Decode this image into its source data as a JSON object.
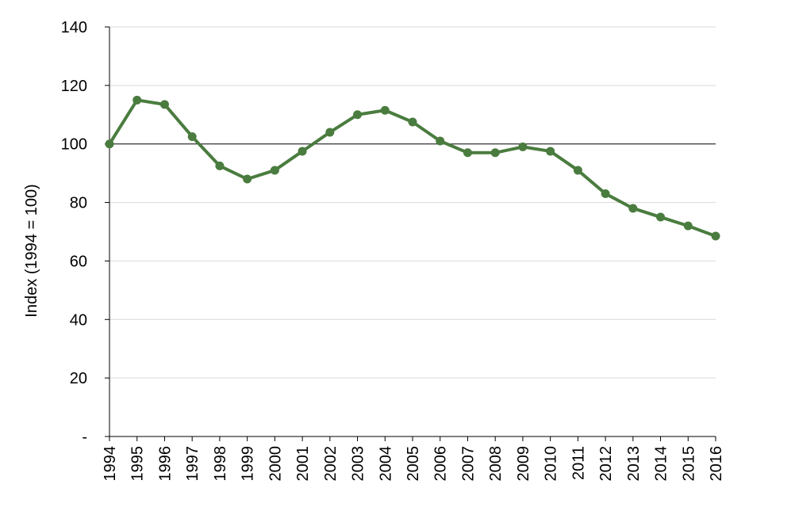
{
  "chart_data": {
    "type": "line",
    "title": "",
    "xlabel": "",
    "ylabel": "Index (1994 = 100)",
    "x": [
      "1994",
      "1995",
      "1996",
      "1997",
      "1998",
      "1999",
      "2000",
      "2001",
      "2002",
      "2003",
      "2004",
      "2005",
      "2006",
      "2007",
      "2008",
      "2009",
      "2010",
      "2011",
      "2012",
      "2013",
      "2014",
      "2015",
      "2016"
    ],
    "series": [
      {
        "values": [
          100,
          115,
          113.5,
          102.5,
          92.5,
          88,
          91,
          97.5,
          104,
          110,
          111.5,
          107.5,
          101,
          97,
          97,
          99,
          97.5,
          91,
          83,
          78,
          75,
          72,
          68.5
        ]
      }
    ],
    "ylim": [
      0,
      140
    ],
    "yticks": [
      0,
      20,
      40,
      60,
      80,
      100,
      120,
      140
    ],
    "ytick_labels": [
      "-",
      "20",
      "40",
      "60",
      "80",
      "100",
      "120",
      "140"
    ],
    "reference_line": 100,
    "grid": true,
    "legend": "none",
    "colors": {
      "line": "#4a7c3f",
      "grid": "#d9d9d9",
      "axis": "#000000"
    }
  }
}
